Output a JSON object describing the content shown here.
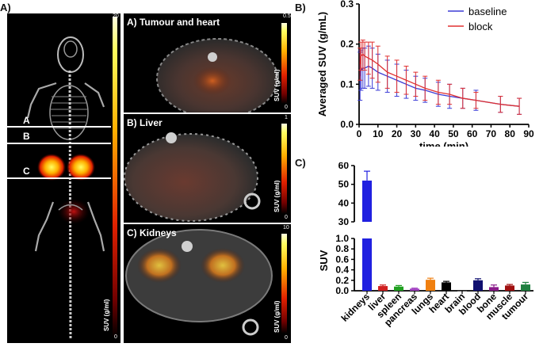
{
  "panel_a": {
    "letter": "A)",
    "whole_body": {
      "line_labels": [
        "A",
        "B",
        "C"
      ],
      "colorbar": {
        "max": "20",
        "min": "0",
        "title": "SUV (g/ml)"
      }
    },
    "slices": [
      {
        "title": "A) Tumour and heart",
        "colorbar": {
          "max": "0.5",
          "min": "0",
          "title": "SUV (g/ml)"
        }
      },
      {
        "title": "B) Liver",
        "colorbar": {
          "max": "1",
          "min": "0",
          "title": "SUV (g/ml)"
        }
      },
      {
        "title": "C) Kidneys",
        "colorbar": {
          "max": "10",
          "min": "0",
          "title": "SUV (g/ml)"
        }
      }
    ]
  },
  "panel_b": {
    "letter": "B)"
  },
  "panel_c": {
    "letter": "C)"
  },
  "chart_data": [
    {
      "type": "line",
      "ylabel": "Averaged SUV (g/mL)",
      "xlabel": "time (min)",
      "xlim": [
        0,
        90
      ],
      "ylim": [
        0,
        0.3
      ],
      "xticks": [
        "0",
        "10",
        "20",
        "30",
        "40",
        "50",
        "60",
        "70",
        "80",
        "90"
      ],
      "yticks": [
        "0.0",
        "0.1",
        "0.2",
        "0.3"
      ],
      "legend_position": "top-right",
      "series": [
        {
          "name": "baseline",
          "color": "#3b3bd6",
          "x": [
            0.5,
            1,
            2,
            3,
            5,
            7,
            10,
            15,
            20,
            25,
            30,
            35,
            42,
            48,
            55,
            62,
            75,
            85
          ],
          "y": [
            0.12,
            0.135,
            0.14,
            0.14,
            0.145,
            0.14,
            0.13,
            0.12,
            0.11,
            0.1,
            0.09,
            0.085,
            0.075,
            0.07,
            0.065,
            0.06,
            0.05,
            0.045
          ],
          "err": [
            0.06,
            0.05,
            0.05,
            0.05,
            0.05,
            0.05,
            0.045,
            0.04,
            0.04,
            0.035,
            0.03,
            0.03,
            0.03,
            0.03,
            0.025,
            0.025,
            0.02,
            0.02
          ]
        },
        {
          "name": "block",
          "color": "#e03030",
          "x": [
            0.5,
            1,
            2,
            3,
            5,
            7,
            10,
            15,
            20,
            25,
            30,
            35,
            42,
            48,
            55,
            62,
            75,
            85
          ],
          "y": [
            0.15,
            0.17,
            0.175,
            0.17,
            0.165,
            0.16,
            0.15,
            0.13,
            0.12,
            0.11,
            0.1,
            0.09,
            0.08,
            0.075,
            0.065,
            0.06,
            0.05,
            0.045
          ],
          "err": [
            0.04,
            0.035,
            0.035,
            0.035,
            0.04,
            0.045,
            0.045,
            0.04,
            0.04,
            0.035,
            0.03,
            0.03,
            0.03,
            0.025,
            0.025,
            0.02,
            0.02,
            0.02
          ]
        }
      ]
    },
    {
      "type": "bar",
      "ylabel": "SUV",
      "categories": [
        "kidneys",
        "liver",
        "spleen",
        "pancreas",
        "lungs",
        "heart",
        "brain",
        "blood",
        "bone",
        "muscle",
        "tumour"
      ],
      "values": [
        52,
        0.09,
        0.08,
        0.04,
        0.21,
        0.16,
        0.0,
        0.2,
        0.07,
        0.1,
        0.12
      ],
      "errors": [
        5,
        0.02,
        0.02,
        0.01,
        0.03,
        0.02,
        0.0,
        0.03,
        0.04,
        0.02,
        0.04
      ],
      "colors": [
        "#2020e0",
        "#d02020",
        "#20a020",
        "#a040c0",
        "#f08010",
        "#000000",
        "#808080",
        "#101070",
        "#8a1a8a",
        "#a01010",
        "#208040"
      ],
      "broken_axis": true,
      "lower_ylim": [
        0,
        1.0
      ],
      "upper_ylim": [
        30,
        60
      ],
      "lower_yticks": [
        "0.0",
        "0.2",
        "0.4",
        "0.6",
        "0.8",
        "1.0"
      ],
      "upper_yticks": [
        "30",
        "40",
        "50",
        "60"
      ]
    }
  ]
}
